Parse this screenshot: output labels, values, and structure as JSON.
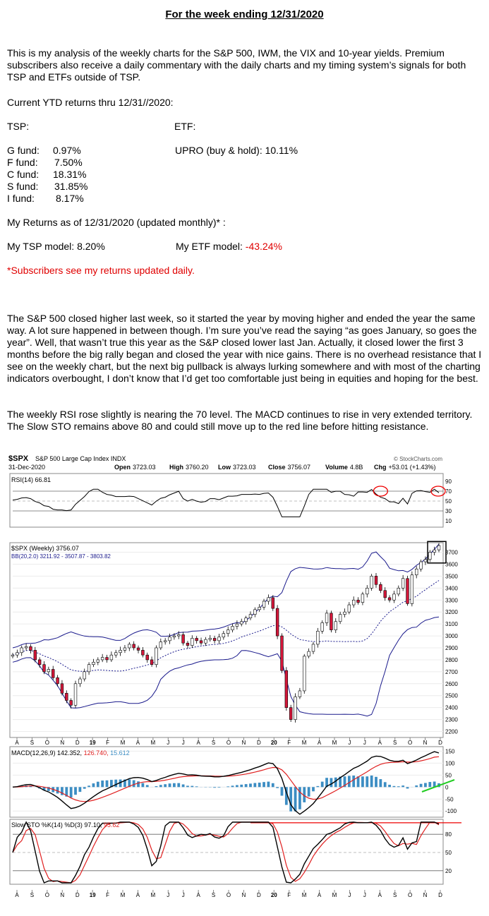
{
  "header": {
    "title": "For the week ending 12/31/2020"
  },
  "intro": "This is my analysis of the weekly charts for the S&P 500, IWM, the VIX and 10-year yields. Premium subscribers also receive a daily commentary with the daily charts and my timing system’s signals for both TSP and ETFs outside of TSP.",
  "ytd_heading": "Current YTD returns thru 12/31//2020:",
  "tsp_label": "TSP:",
  "etf_label": "ETF:",
  "funds": [
    {
      "name": "G fund:",
      "value": "0.97%"
    },
    {
      "name": "F fund:",
      "value": "7.50%"
    },
    {
      "name": "C fund:",
      "value": "18.31%"
    },
    {
      "name": "S fund:",
      "value": "31.85%"
    },
    {
      "name": "I fund:",
      "value": "8.17%"
    }
  ],
  "etf_return": "UPRO (buy & hold): 10.11%",
  "my_returns_heading": "My Returns as of 12/31/2020 (updated monthly)* :",
  "tsp_model_label": "My TSP model: ",
  "tsp_model_value": "8.20%",
  "etf_model_label": "My ETF model: ",
  "etf_model_value": "-43.24%",
  "subscriber_note": "*Subscribers see my returns updated daily.",
  "analysis_1": "The S&P 500 closed higher last week, so it started the year by moving higher and ended the year the same way. A lot sure happened in between though. I’m sure you’ve read the saying “as goes January, so goes the year”. Well, that wasn’t true this year as the S&P closed lower last Jan. Actually, it closed lower the first 3 months before the big rally began and closed the year with nice gains. There is no overhead resistance that I see on the weekly chart, but the next big pullback is always lurking somewhere and with most of the charting indicators overbought, I don’t know that I’d get too comfortable just being in equities and hoping for the best.",
  "analysis_2": "The weekly RSI rose slightly is nearing the 70 level. The MACD continues to rise in very extended territory. The Slow STO remains above 80 and could still move up to the red line before hitting resistance.",
  "chart": {
    "symbol": "$SPX",
    "name": "S&P 500 Large Cap Index INDX",
    "watermark": "© StockCharts.com",
    "date": "31-Dec-2020",
    "open_label": "Open",
    "open": "3723.03",
    "high_label": "High",
    "high": "3760.20",
    "low_label": "Low",
    "low": "3723.03",
    "close_label": "Close",
    "close": "3756.07",
    "volume_label": "Volume",
    "volume": "4.8B",
    "chg_label": "Chg",
    "chg": "+53.01 (+1.43%)",
    "rsi_legend": "RSI(14) 66.81",
    "price_legend": "$SPX (Weekly) 3756.07",
    "bb_legend": "BB(20,2.0) 3211.92 - 3507.87 - 3803.82",
    "macd_legend_a": "MACD(12,26,9) 142.352,",
    "macd_legend_b": "126.740,",
    "macd_legend_c": "15.612",
    "sto_legend_a": "Slow STO %K(14) %D(3) 97.10,",
    "sto_legend_b": "95.62",
    "colors": {
      "up": "#ffffff",
      "down": "#d4173a",
      "bb": "#1a1a8c",
      "macd_hist": "#3c8dc3",
      "signal": "#e02020",
      "trend": "#22cc22"
    }
  },
  "chart_data": {
    "type": "candlestick",
    "title": "$SPX S&P 500 Large Cap Index INDX",
    "frequency": "weekly",
    "x_axis_months": [
      "A",
      "S",
      "O",
      "N",
      "D",
      "19",
      "F",
      "M",
      "A",
      "M",
      "J",
      "J",
      "A",
      "S",
      "O",
      "N",
      "D",
      "20",
      "F",
      "M",
      "A",
      "M",
      "J",
      "J",
      "A",
      "S",
      "O",
      "N",
      "D"
    ],
    "price_ticks": [
      2200,
      2300,
      2400,
      2500,
      2600,
      2700,
      2800,
      2900,
      3000,
      3100,
      3200,
      3300,
      3400,
      3500,
      3600,
      3700
    ],
    "rsi_ticks": [
      10,
      30,
      50,
      70,
      90
    ],
    "macd_ticks": [
      -100,
      -50,
      0,
      50,
      100,
      150
    ],
    "sto_ticks": [
      20,
      50,
      80
    ],
    "close_series": [
      2840,
      2860,
      2900,
      2910,
      2880,
      2800,
      2760,
      2700,
      2720,
      2650,
      2600,
      2520,
      2460,
      2420,
      2600,
      2640,
      2700,
      2760,
      2780,
      2800,
      2820,
      2800,
      2840,
      2860,
      2880,
      2900,
      2930,
      2900,
      2880,
      2840,
      2800,
      2760,
      2900,
      2950,
      2960,
      2990,
      3000,
      3010,
      2940,
      2920,
      2980,
      2960,
      2940,
      2970,
      2980,
      2960,
      2990,
      3020,
      3050,
      3080,
      3100,
      3120,
      3150,
      3180,
      3220,
      3240,
      3290,
      3320,
      3230,
      3000,
      2710,
      2400,
      2300,
      2490,
      2540,
      2830,
      2870,
      2930,
      3040,
      3110,
      3190,
      3050,
      3120,
      3180,
      3200,
      3260,
      3300,
      3280,
      3350,
      3400,
      3500,
      3430,
      3380,
      3320,
      3300,
      3350,
      3400,
      3480,
      3270,
      3510,
      3560,
      3620,
      3640,
      3700,
      3720,
      3756
    ],
    "rsi_last": 66.81,
    "macd": {
      "macd": 142.352,
      "signal": 126.74,
      "histogram": 15.612
    },
    "slow_sto": {
      "k": 97.1,
      "d": 95.62
    },
    "bollinger": {
      "lower": 3211.92,
      "middle": 3507.87,
      "upper": 3803.82
    }
  }
}
